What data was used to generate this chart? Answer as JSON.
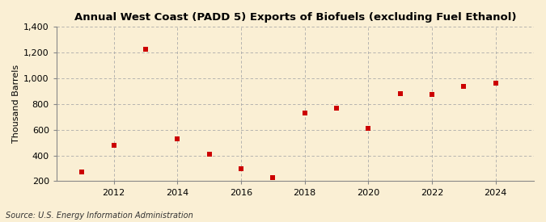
{
  "title": "Annual West Coast (PADD 5) Exports of Biofuels (excluding Fuel Ethanol)",
  "ylabel": "Thousand Barrels",
  "source": "Source: U.S. Energy Information Administration",
  "x": [
    2011,
    2012,
    2013,
    2014,
    2015,
    2016,
    2017,
    2018,
    2019,
    2020,
    2021,
    2022,
    2023,
    2024
  ],
  "y": [
    270,
    480,
    1225,
    530,
    410,
    295,
    225,
    730,
    765,
    610,
    880,
    875,
    940,
    960
  ],
  "marker_color": "#cc0000",
  "marker": "s",
  "marker_size": 4,
  "xlim": [
    2010.2,
    2025.2
  ],
  "ylim": [
    200,
    1400
  ],
  "yticks": [
    200,
    400,
    600,
    800,
    1000,
    1200,
    1400
  ],
  "xticks": [
    2012,
    2014,
    2016,
    2018,
    2020,
    2022,
    2024
  ],
  "bg_color": "#faefd4",
  "grid_color": "#aaaaaa",
  "title_fontsize": 9.5,
  "label_fontsize": 8,
  "tick_fontsize": 8,
  "source_fontsize": 7
}
